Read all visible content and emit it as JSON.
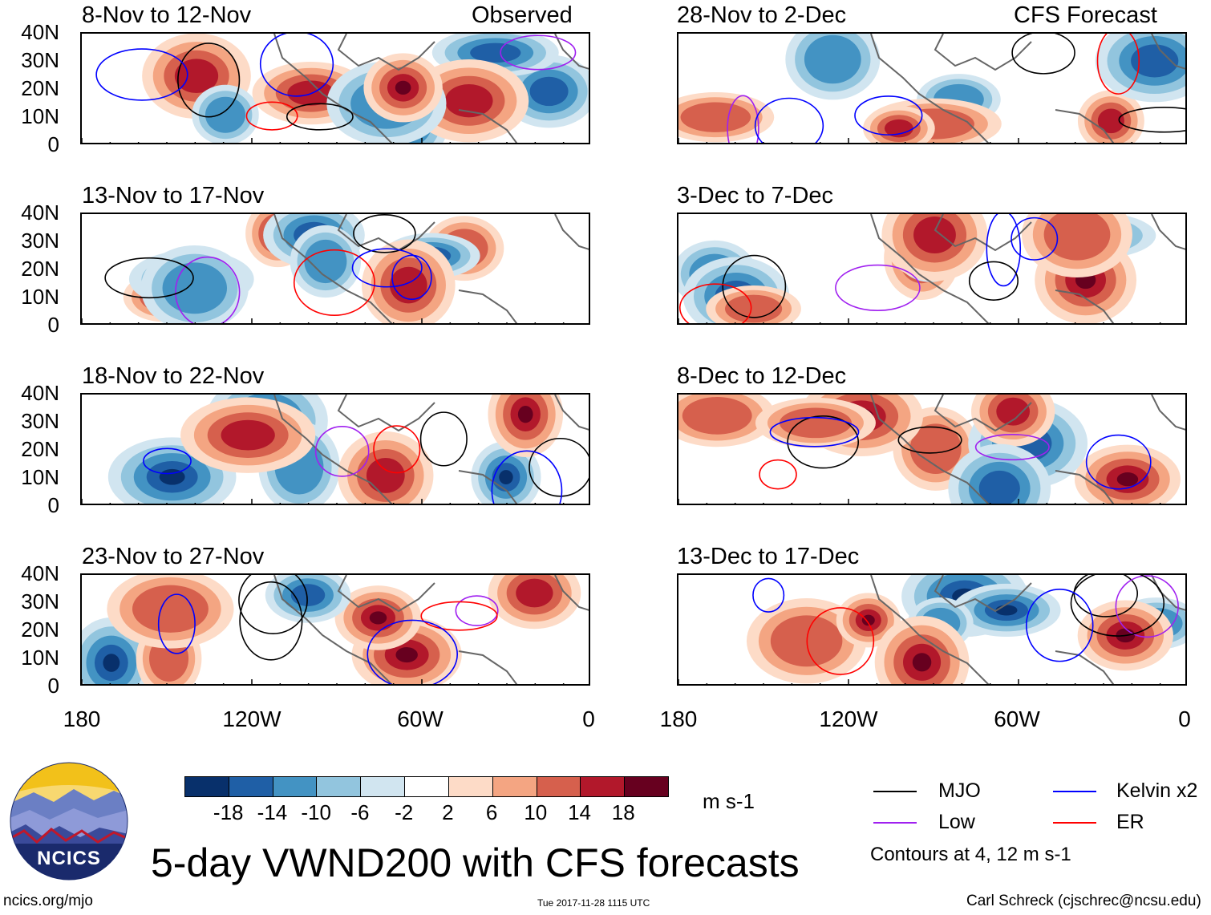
{
  "columns": {
    "left_label": "Observed",
    "right_label": "CFS Forecast"
  },
  "panels": [
    {
      "title": "8-Nov to 12-Nov",
      "column": "left",
      "row": 0
    },
    {
      "title": "13-Nov to 17-Nov",
      "column": "left",
      "row": 1
    },
    {
      "title": "18-Nov to 22-Nov",
      "column": "left",
      "row": 2
    },
    {
      "title": "23-Nov to 27-Nov",
      "column": "left",
      "row": 3
    },
    {
      "title": "28-Nov to 2-Dec",
      "column": "right",
      "row": 0
    },
    {
      "title": "3-Dec to 7-Dec",
      "column": "right",
      "row": 1
    },
    {
      "title": "8-Dec to 12-Dec",
      "column": "right",
      "row": 2
    },
    {
      "title": "13-Dec to 17-Dec",
      "column": "right",
      "row": 3
    }
  ],
  "axes": {
    "lat_labels": [
      "40N",
      "30N",
      "20N",
      "10N",
      "0"
    ],
    "lon_labels": [
      "180",
      "120W",
      "60W",
      "0"
    ]
  },
  "colorbar": {
    "labels": [
      "-18",
      "-14",
      "-10",
      "-6",
      "-2",
      "2",
      "6",
      "10",
      "14",
      "18"
    ],
    "colors": [
      "#08306b",
      "#1f5fa6",
      "#4393c3",
      "#92c5de",
      "#d1e5f0",
      "#ffffff",
      "#fddbc7",
      "#f4a582",
      "#d6604d",
      "#b2182b",
      "#67001f"
    ],
    "units": "m s-1"
  },
  "legend": {
    "items": [
      {
        "label": "MJO",
        "color": "#000000"
      },
      {
        "label": "Kelvin x2",
        "color": "#0000ff"
      },
      {
        "label": "Low",
        "color": "#a020f0"
      },
      {
        "label": "ER",
        "color": "#ff0000"
      }
    ],
    "contours_note": "Contours at 4, 12 m s-1"
  },
  "title": "5-day VWND200 with CFS forecasts",
  "logo_text": "NCICS",
  "footer": {
    "site": "ncics.org/mjo",
    "timestamp": "Tue 2017-11-28 1115 UTC",
    "credit": "Carl Schreck (cjschrec@ncsu.edu)"
  }
}
